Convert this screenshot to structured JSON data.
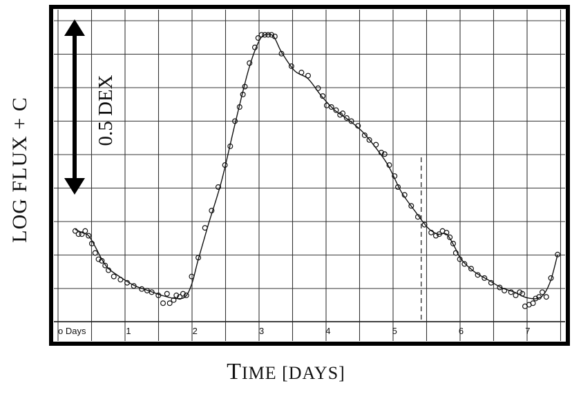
{
  "chart_data": {
    "type": "scatter",
    "ylabel": "LOG FLUX + C",
    "xlabel": {
      "first": "T",
      "rest": "IME [DAYS]"
    },
    "scale_annotation": "0.5 DEX",
    "x_tick_labels": [
      "o Days",
      "1",
      "2",
      "3",
      "4",
      "5",
      "6",
      "7"
    ],
    "x_ticks": [
      0,
      1,
      2,
      3,
      4,
      5,
      6,
      7
    ],
    "xlim": [
      -0.1,
      7.5
    ],
    "ylim": [
      0.0,
      1.9
    ],
    "grid": true,
    "dashed_marker_x": 5.4,
    "series": [
      {
        "points": [
          [
            0.2,
            0.56
          ],
          [
            0.25,
            0.54
          ],
          [
            0.3,
            0.54
          ],
          [
            0.35,
            0.56
          ],
          [
            0.4,
            0.53
          ],
          [
            0.45,
            0.48
          ],
          [
            0.5,
            0.42
          ],
          [
            0.55,
            0.38
          ],
          [
            0.6,
            0.37
          ],
          [
            0.65,
            0.34
          ],
          [
            0.7,
            0.31
          ],
          [
            0.78,
            0.27
          ],
          [
            0.88,
            0.25
          ],
          [
            0.98,
            0.23
          ],
          [
            1.08,
            0.21
          ],
          [
            1.2,
            0.19
          ],
          [
            1.28,
            0.18
          ],
          [
            1.35,
            0.17
          ],
          [
            1.45,
            0.15
          ],
          [
            1.52,
            0.1
          ],
          [
            1.58,
            0.16
          ],
          [
            1.62,
            0.1
          ],
          [
            1.68,
            0.12
          ],
          [
            1.72,
            0.15
          ],
          [
            1.77,
            0.14
          ],
          [
            1.82,
            0.16
          ],
          [
            1.87,
            0.15
          ],
          [
            1.95,
            0.27
          ],
          [
            2.05,
            0.39
          ],
          [
            2.15,
            0.58
          ],
          [
            2.25,
            0.69
          ],
          [
            2.35,
            0.84
          ],
          [
            2.45,
            0.98
          ],
          [
            2.53,
            1.1
          ],
          [
            2.6,
            1.26
          ],
          [
            2.67,
            1.35
          ],
          [
            2.72,
            1.43
          ],
          [
            2.75,
            1.48
          ],
          [
            2.82,
            1.63
          ],
          [
            2.9,
            1.73
          ],
          [
            2.95,
            1.79
          ],
          [
            3.0,
            1.81
          ],
          [
            3.05,
            1.81
          ],
          [
            3.1,
            1.81
          ],
          [
            3.15,
            1.81
          ],
          [
            3.2,
            1.8
          ],
          [
            3.3,
            1.69
          ],
          [
            3.45,
            1.61
          ],
          [
            3.6,
            1.57
          ],
          [
            3.7,
            1.55
          ],
          [
            3.85,
            1.47
          ],
          [
            3.92,
            1.42
          ],
          [
            3.98,
            1.36
          ],
          [
            4.05,
            1.35
          ],
          [
            4.12,
            1.33
          ],
          [
            4.18,
            1.3
          ],
          [
            4.22,
            1.31
          ],
          [
            4.28,
            1.28
          ],
          [
            4.35,
            1.26
          ],
          [
            4.45,
            1.23
          ],
          [
            4.55,
            1.17
          ],
          [
            4.62,
            1.14
          ],
          [
            4.72,
            1.11
          ],
          [
            4.8,
            1.06
          ],
          [
            4.85,
            1.05
          ],
          [
            4.92,
            0.98
          ],
          [
            5.0,
            0.91
          ],
          [
            5.05,
            0.84
          ],
          [
            5.15,
            0.79
          ],
          [
            5.25,
            0.72
          ],
          [
            5.35,
            0.65
          ],
          [
            5.45,
            0.6
          ],
          [
            5.55,
            0.55
          ],
          [
            5.62,
            0.53
          ],
          [
            5.67,
            0.54
          ],
          [
            5.72,
            0.56
          ],
          [
            5.78,
            0.55
          ],
          [
            5.83,
            0.52
          ],
          [
            5.88,
            0.48
          ],
          [
            5.92,
            0.42
          ],
          [
            5.98,
            0.38
          ],
          [
            6.05,
            0.35
          ],
          [
            6.15,
            0.32
          ],
          [
            6.25,
            0.28
          ],
          [
            6.35,
            0.26
          ],
          [
            6.45,
            0.23
          ],
          [
            6.58,
            0.2
          ],
          [
            6.65,
            0.18
          ],
          [
            6.75,
            0.17
          ],
          [
            6.82,
            0.15
          ],
          [
            6.88,
            0.17
          ],
          [
            6.92,
            0.16
          ],
          [
            6.96,
            0.08
          ],
          [
            7.02,
            0.09
          ],
          [
            7.08,
            0.1
          ],
          [
            7.12,
            0.13
          ],
          [
            7.17,
            0.14
          ],
          [
            7.22,
            0.17
          ],
          [
            7.28,
            0.14
          ],
          [
            7.35,
            0.26
          ],
          [
            7.45,
            0.41
          ]
        ]
      }
    ],
    "fit_curve": [
      [
        0.2,
        0.57
      ],
      [
        0.3,
        0.55
      ],
      [
        0.4,
        0.53
      ],
      [
        0.5,
        0.46
      ],
      [
        0.6,
        0.38
      ],
      [
        0.7,
        0.32
      ],
      [
        0.9,
        0.26
      ],
      [
        1.1,
        0.21
      ],
      [
        1.3,
        0.18
      ],
      [
        1.5,
        0.15
      ],
      [
        1.7,
        0.13
      ],
      [
        1.85,
        0.14
      ],
      [
        1.95,
        0.22
      ],
      [
        2.05,
        0.38
      ],
      [
        2.2,
        0.6
      ],
      [
        2.4,
        0.88
      ],
      [
        2.6,
        1.24
      ],
      [
        2.8,
        1.58
      ],
      [
        2.95,
        1.76
      ],
      [
        3.05,
        1.81
      ],
      [
        3.18,
        1.8
      ],
      [
        3.3,
        1.7
      ],
      [
        3.5,
        1.58
      ],
      [
        3.7,
        1.53
      ],
      [
        3.9,
        1.42
      ],
      [
        4.1,
        1.33
      ],
      [
        4.3,
        1.27
      ],
      [
        4.5,
        1.2
      ],
      [
        4.7,
        1.1
      ],
      [
        4.9,
        0.98
      ],
      [
        5.1,
        0.81
      ],
      [
        5.3,
        0.69
      ],
      [
        5.5,
        0.58
      ],
      [
        5.65,
        0.54
      ],
      [
        5.78,
        0.54
      ],
      [
        5.9,
        0.46
      ],
      [
        6.0,
        0.38
      ],
      [
        6.2,
        0.3
      ],
      [
        6.4,
        0.25
      ],
      [
        6.6,
        0.2
      ],
      [
        6.8,
        0.17
      ],
      [
        6.95,
        0.14
      ],
      [
        7.05,
        0.13
      ],
      [
        7.15,
        0.13
      ],
      [
        7.25,
        0.16
      ],
      [
        7.35,
        0.25
      ],
      [
        7.45,
        0.41
      ]
    ]
  }
}
